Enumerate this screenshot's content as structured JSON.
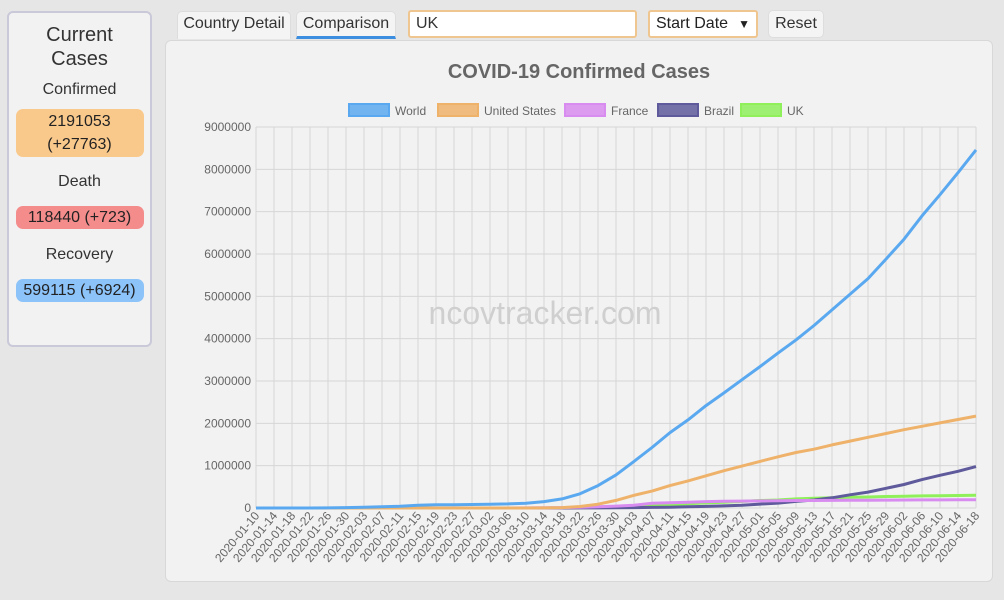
{
  "sidebar": {
    "title_line1": "Current",
    "title_line2": "Cases",
    "confirmed_label": "Confirmed",
    "confirmed_value": "2191053",
    "confirmed_delta": "(+27763)",
    "death_label": "Death",
    "death_value": "118440 (+723)",
    "recovery_label": "Recovery",
    "recovery_value": "599115 (+6924)"
  },
  "toolbar": {
    "tab_country_detail": "Country Detail",
    "tab_comparison": "Comparison",
    "country_input_value": "UK",
    "start_date_label": "Start Date",
    "reset_label": "Reset"
  },
  "colors": {
    "World": "#5aa9f0",
    "United States": "#efb26a",
    "France": "#d98cf0",
    "Brazil": "#5e5a9c",
    "UK": "#8ff05c"
  },
  "chart_data": {
    "type": "line",
    "title": "COVID-19 Confirmed Cases",
    "watermark": "ncovtracker.com",
    "legend_position": "top",
    "grid": true,
    "ylim": [
      0,
      9000000
    ],
    "y_ticks": [
      "0",
      "1000000",
      "2000000",
      "3000000",
      "4000000",
      "5000000",
      "6000000",
      "7000000",
      "8000000",
      "9000000"
    ],
    "x_tick_labels": [
      "2020-01-10",
      "2020-01-14",
      "2020-01-18",
      "2020-01-22",
      "2020-01-26",
      "2020-01-30",
      "2020-02-03",
      "2020-02-07",
      "2020-02-11",
      "2020-02-15",
      "2020-02-19",
      "2020-02-23",
      "2020-02-27",
      "2020-03-02",
      "2020-03-06",
      "2020-03-10",
      "2020-03-14",
      "2020-03-18",
      "2020-03-22",
      "2020-03-26",
      "2020-03-30",
      "2020-04-03",
      "2020-04-07",
      "2020-04-11",
      "2020-04-15",
      "2020-04-19",
      "2020-04-23",
      "2020-04-27",
      "2020-05-01",
      "2020-05-05",
      "2020-05-09",
      "2020-05-13",
      "2020-05-17",
      "2020-05-21",
      "2020-05-25",
      "2020-05-29",
      "2020-06-02",
      "2020-06-06",
      "2020-06-10",
      "2020-06-14",
      "2020-06-18"
    ],
    "x": [
      "2020-01-10",
      "2020-01-14",
      "2020-01-18",
      "2020-01-22",
      "2020-01-26",
      "2020-01-30",
      "2020-02-03",
      "2020-02-07",
      "2020-02-11",
      "2020-02-15",
      "2020-02-19",
      "2020-02-23",
      "2020-02-27",
      "2020-03-02",
      "2020-03-06",
      "2020-03-10",
      "2020-03-14",
      "2020-03-18",
      "2020-03-22",
      "2020-03-26",
      "2020-03-30",
      "2020-04-03",
      "2020-04-07",
      "2020-04-11",
      "2020-04-15",
      "2020-04-19",
      "2020-04-23",
      "2020-04-27",
      "2020-05-01",
      "2020-05-05",
      "2020-05-09",
      "2020-05-13",
      "2020-05-17",
      "2020-05-21",
      "2020-05-25",
      "2020-05-29",
      "2020-06-02",
      "2020-06-06",
      "2020-06-10",
      "2020-06-14",
      "2020-06-18"
    ],
    "series": [
      {
        "name": "World",
        "values": [
          0,
          0,
          0,
          600,
          2000,
          9000,
          17000,
          31000,
          43000,
          67000,
          75000,
          79000,
          83000,
          89000,
          98000,
          114000,
          152000,
          214000,
          336000,
          529000,
          782000,
          1100000,
          1430000,
          1780000,
          2080000,
          2420000,
          2720000,
          3030000,
          3340000,
          3660000,
          3970000,
          4310000,
          4680000,
          5050000,
          5420000,
          5880000,
          6350000,
          6900000,
          7400000,
          7920000,
          8460000
        ]
      },
      {
        "name": "United States",
        "values": [
          0,
          0,
          0,
          1,
          2,
          6,
          11,
          12,
          13,
          15,
          15,
          15,
          60,
          100,
          250,
          1000,
          3000,
          9000,
          35000,
          90000,
          180000,
          300000,
          400000,
          530000,
          640000,
          760000,
          880000,
          990000,
          1100000,
          1210000,
          1310000,
          1390000,
          1490000,
          1580000,
          1670000,
          1760000,
          1850000,
          1930000,
          2010000,
          2090000,
          2170000
        ]
      },
      {
        "name": "France",
        "values": [
          0,
          0,
          0,
          0,
          3,
          6,
          6,
          6,
          11,
          12,
          12,
          12,
          57,
          190,
          600,
          1800,
          4500,
          9100,
          16000,
          29000,
          45000,
          65000,
          110000,
          125000,
          134000,
          152000,
          158000,
          163000,
          168000,
          171000,
          176000,
          178000,
          179000,
          181000,
          183000,
          186000,
          189000,
          191000,
          192000,
          194000,
          195000
        ]
      },
      {
        "name": "Brazil",
        "values": [
          0,
          0,
          0,
          0,
          0,
          0,
          0,
          0,
          0,
          0,
          0,
          0,
          1,
          2,
          13,
          34,
          121,
          291,
          1500,
          2900,
          4600,
          9000,
          14000,
          20000,
          28000,
          38000,
          50000,
          66000,
          92000,
          115000,
          155000,
          190000,
          241000,
          311000,
          375000,
          465000,
          555000,
          672000,
          772000,
          868000,
          978000
        ]
      },
      {
        "name": "UK",
        "values": [
          0,
          0,
          0,
          0,
          0,
          2,
          2,
          3,
          8,
          9,
          9,
          9,
          15,
          40,
          160,
          370,
          1140,
          2600,
          5700,
          11600,
          22100,
          38200,
          55200,
          78900,
          98500,
          120000,
          138000,
          157000,
          177000,
          190000,
          216000,
          229000,
          243000,
          252000,
          261000,
          271000,
          279000,
          286000,
          291000,
          295000,
          300000
        ]
      }
    ]
  }
}
